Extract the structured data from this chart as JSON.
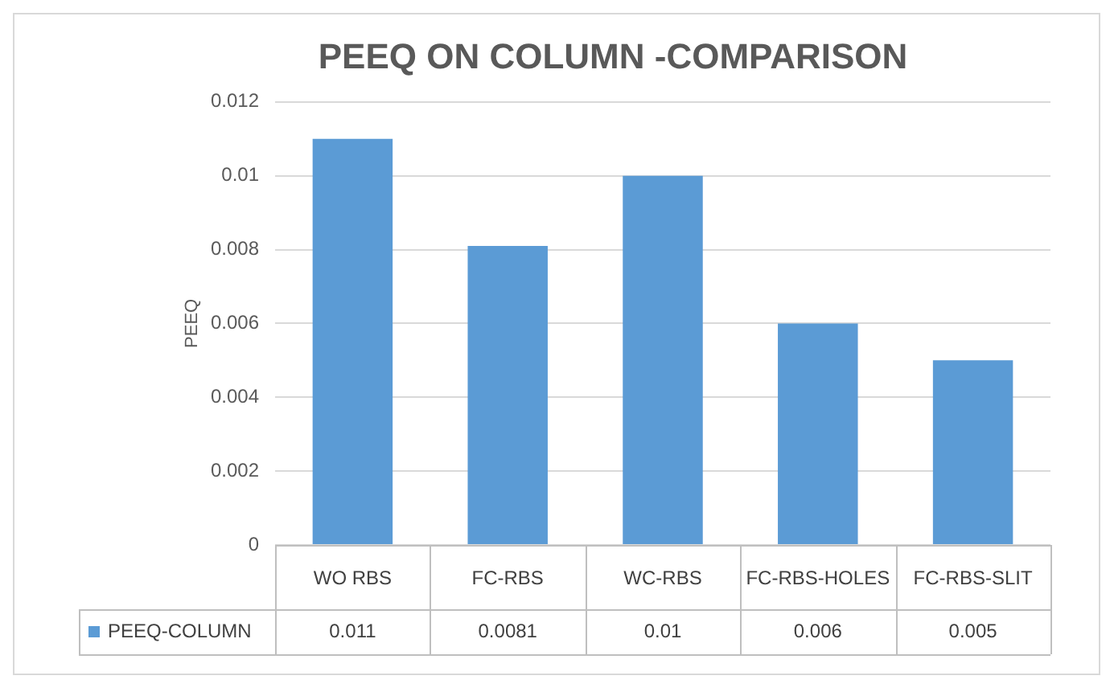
{
  "chart_data": {
    "type": "bar",
    "title": "PEEQ ON COLUMN -COMPARISON",
    "ylabel": "PEEQ",
    "categories": [
      "WO RBS",
      "FC-RBS",
      "WC-RBS",
      "FC-RBS-HOLES",
      "FC-RBS-SLIT"
    ],
    "series": [
      {
        "name": "PEEQ-COLUMN",
        "color": "#5b9bd5",
        "values": [
          0.011,
          0.0081,
          0.01,
          0.006,
          0.005
        ]
      }
    ],
    "ylim": [
      0,
      0.012
    ],
    "yticks": [
      0,
      0.002,
      0.004,
      0.006,
      0.008,
      0.01,
      0.012
    ],
    "grid": "y",
    "legend": "bottom",
    "data_labels": true
  }
}
